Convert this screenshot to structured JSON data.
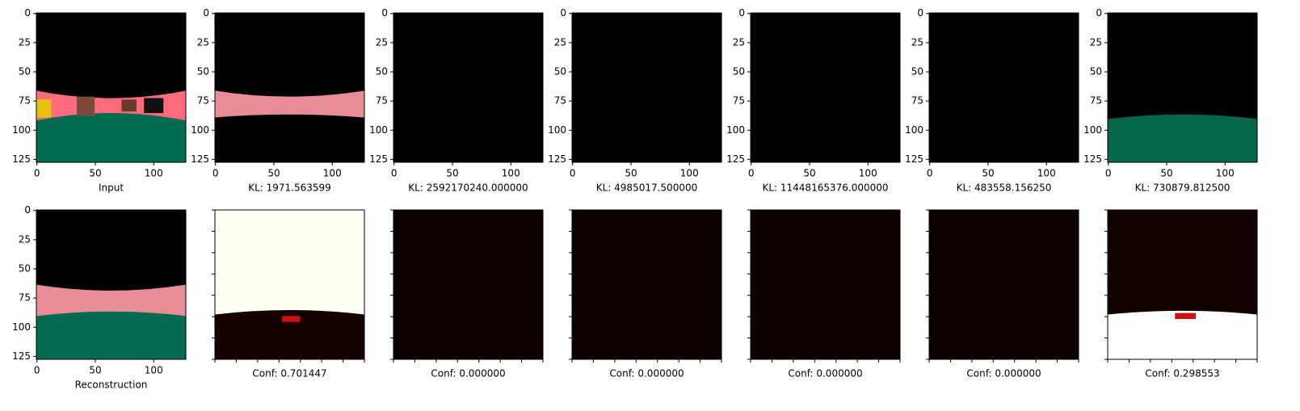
{
  "chart_data": [
    {
      "type": "image",
      "xlabel": "Input",
      "xlim": [
        -0.5,
        127.5
      ],
      "ylim": [
        127.5,
        -0.5
      ],
      "xticks": [
        0,
        50,
        100
      ],
      "yticks": [
        0,
        25,
        50,
        75,
        100,
        125
      ],
      "tick_labels": true
    },
    {
      "type": "image",
      "xlabel": "KL: 1971.563599",
      "xlim": [
        -0.5,
        127.5
      ],
      "ylim": [
        127.5,
        -0.5
      ],
      "xticks": [
        0,
        50,
        100
      ],
      "yticks": [
        0,
        25,
        50,
        75,
        100,
        125
      ],
      "tick_labels": true
    },
    {
      "type": "image",
      "xlabel": "KL: 2592170240.000000",
      "xlim": [
        -0.5,
        127.5
      ],
      "ylim": [
        127.5,
        -0.5
      ],
      "xticks": [
        0,
        50,
        100
      ],
      "yticks": [
        0,
        25,
        50,
        75,
        100,
        125
      ],
      "tick_labels": true
    },
    {
      "type": "image",
      "xlabel": "KL: 4985017.500000",
      "xlim": [
        -0.5,
        127.5
      ],
      "ylim": [
        127.5,
        -0.5
      ],
      "xticks": [
        0,
        50,
        100
      ],
      "yticks": [
        0,
        25,
        50,
        75,
        100,
        125
      ],
      "tick_labels": true
    },
    {
      "type": "image",
      "xlabel": "KL: 11448165376.000000",
      "xlim": [
        -0.5,
        127.5
      ],
      "ylim": [
        127.5,
        -0.5
      ],
      "xticks": [
        0,
        50,
        100
      ],
      "yticks": [
        0,
        25,
        50,
        75,
        100,
        125
      ],
      "tick_labels": true
    },
    {
      "type": "image",
      "xlabel": "KL: 483558.156250",
      "xlim": [
        -0.5,
        127.5
      ],
      "ylim": [
        127.5,
        -0.5
      ],
      "xticks": [
        0,
        50,
        100
      ],
      "yticks": [
        0,
        25,
        50,
        75,
        100,
        125
      ],
      "tick_labels": true
    },
    {
      "type": "image",
      "xlabel": "KL: 730879.812500",
      "xlim": [
        -0.5,
        127.5
      ],
      "ylim": [
        127.5,
        -0.5
      ],
      "xticks": [
        0,
        50,
        100
      ],
      "yticks": [
        0,
        25,
        50,
        75,
        100,
        125
      ],
      "tick_labels": true
    },
    {
      "type": "image",
      "xlabel": "Reconstruction",
      "xlim": [
        -0.5,
        127.5
      ],
      "ylim": [
        127.5,
        -0.5
      ],
      "xticks": [
        0,
        50,
        100
      ],
      "yticks": [
        0,
        25,
        50,
        75,
        100,
        125
      ],
      "tick_labels": true
    },
    {
      "type": "image",
      "xlabel": "Conf: 0.701447",
      "xlim": [
        0,
        7
      ],
      "ylim": [
        7,
        0
      ],
      "xticks": [
        0,
        1,
        2,
        3,
        4,
        5,
        6,
        7
      ],
      "yticks": [
        0,
        1,
        2,
        3,
        4,
        5,
        6,
        7
      ],
      "tick_labels": false
    },
    {
      "type": "image",
      "xlabel": "Conf: 0.000000",
      "xlim": [
        0,
        7
      ],
      "ylim": [
        7,
        0
      ],
      "xticks": [
        0,
        1,
        2,
        3,
        4,
        5,
        6,
        7
      ],
      "yticks": [
        0,
        1,
        2,
        3,
        4,
        5,
        6,
        7
      ],
      "tick_labels": false
    },
    {
      "type": "image",
      "xlabel": "Conf: 0.000000",
      "xlim": [
        0,
        7
      ],
      "ylim": [
        7,
        0
      ],
      "xticks": [
        0,
        1,
        2,
        3,
        4,
        5,
        6,
        7
      ],
      "yticks": [
        0,
        1,
        2,
        3,
        4,
        5,
        6,
        7
      ],
      "tick_labels": false
    },
    {
      "type": "image",
      "xlabel": "Conf: 0.000000",
      "xlim": [
        0,
        7
      ],
      "ylim": [
        7,
        0
      ],
      "xticks": [
        0,
        1,
        2,
        3,
        4,
        5,
        6,
        7
      ],
      "yticks": [
        0,
        1,
        2,
        3,
        4,
        5,
        6,
        7
      ],
      "tick_labels": false
    },
    {
      "type": "image",
      "xlabel": "Conf: 0.000000",
      "xlim": [
        0,
        7
      ],
      "ylim": [
        7,
        0
      ],
      "xticks": [
        0,
        1,
        2,
        3,
        4,
        5,
        6,
        7
      ],
      "yticks": [
        0,
        1,
        2,
        3,
        4,
        5,
        6,
        7
      ],
      "tick_labels": false
    },
    {
      "type": "image",
      "xlabel": "Conf: 0.298553",
      "xlim": [
        0,
        7
      ],
      "ylim": [
        7,
        0
      ],
      "xticks": [
        0,
        1,
        2,
        3,
        4,
        5,
        6,
        7
      ],
      "yticks": [
        0,
        1,
        2,
        3,
        4,
        5,
        6,
        7
      ],
      "tick_labels": false
    }
  ]
}
